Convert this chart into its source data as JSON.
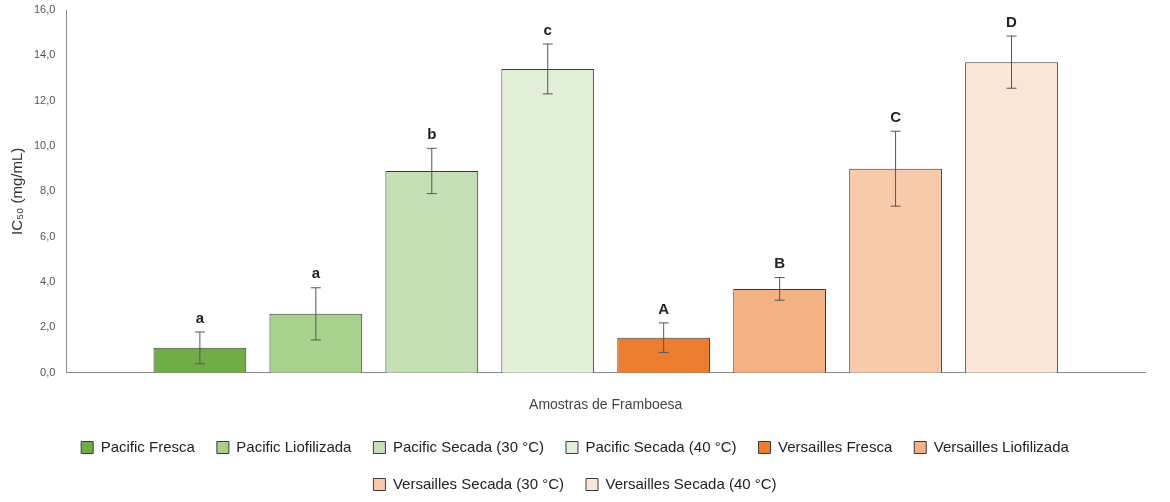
{
  "chart_data": {
    "type": "bar",
    "xlabel": "Amostras de Framboesa",
    "ylabel": "IC₅₀ (mg/mL)",
    "categories": [
      null
    ],
    "series": [
      {
        "name": "Pacific Fresca",
        "color": "#70ad47",
        "values": [
          1.1
        ],
        "errors": [
          0.7
        ],
        "value_labels": [
          "a"
        ]
      },
      {
        "name": "Pacific Liofilizada",
        "color": "#a9d18e",
        "values": [
          2.6
        ],
        "errors": [
          1.15
        ],
        "value_labels": [
          "a"
        ]
      },
      {
        "name": "Pacific Secada (30 °C)",
        "color": "#c5e0b4",
        "values": [
          8.9
        ],
        "errors": [
          1.0
        ],
        "value_labels": [
          "b"
        ]
      },
      {
        "name": "Pacific Secada (40 °C)",
        "color": "#e2f0d9",
        "values": [
          13.4
        ],
        "errors": [
          1.1
        ],
        "value_labels": [
          "c"
        ]
      },
      {
        "name": "Versailles Fresca",
        "color": "#ed7d31",
        "values": [
          1.55
        ],
        "errors": [
          0.65
        ],
        "value_labels": [
          "A"
        ]
      },
      {
        "name": "Versailles Liofilizada",
        "color": "#f4b183",
        "values": [
          3.7
        ],
        "errors": [
          0.5
        ],
        "value_labels": [
          "B"
        ]
      },
      {
        "name": "Versailles Secada (30 °C)",
        "color": "#f8cbad",
        "values": [
          9.0
        ],
        "errors": [
          1.65
        ],
        "value_labels": [
          "C"
        ]
      },
      {
        "name": "Versailles Secada (40 °C)",
        "color": "#fbe5d6",
        "values": [
          13.7
        ],
        "errors": [
          1.15
        ],
        "value_labels": [
          "D"
        ]
      }
    ],
    "ylim": [
      0,
      16
    ],
    "yticks": [
      {
        "value": 0,
        "label": "0,0"
      },
      {
        "value": 2,
        "label": "2,0"
      },
      {
        "value": 4,
        "label": "4,0"
      },
      {
        "value": 6,
        "label": "6,0"
      },
      {
        "value": 8,
        "label": "8,0"
      },
      {
        "value": 10,
        "label": "10,0"
      },
      {
        "value": 12,
        "label": "12,0"
      },
      {
        "value": 14,
        "label": "14,0"
      },
      {
        "value": 16,
        "label": "16,0"
      }
    ],
    "grid": false,
    "legend": "bottom"
  }
}
